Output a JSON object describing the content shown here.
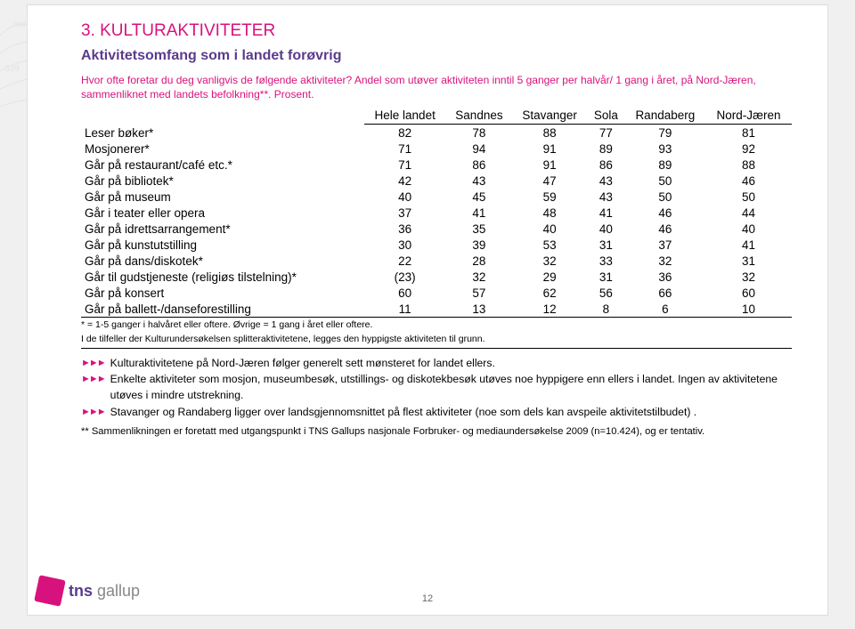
{
  "title": "3. KULTURAKTIVITETER",
  "subtitle": "Aktivitetsomfang som i landet forøvrig",
  "intro": "Hvor ofte foretar du deg vanligvis de følgende aktiviteter? Andel som utøver aktiviteten inntil 5 ganger per halvår/ 1 gang i året, på Nord-Jæren, sammenliknet med landets befolkning**. Prosent.",
  "columns": [
    "Hele landet",
    "Sandnes",
    "Stavanger",
    "Sola",
    "Randaberg",
    "Nord-Jæren"
  ],
  "rows": [
    {
      "label": "Leser bøker*",
      "v": [
        "82",
        "78",
        "88",
        "77",
        "79",
        "81"
      ]
    },
    {
      "label": "Mosjonerer*",
      "v": [
        "71",
        "94",
        "91",
        "89",
        "93",
        "92"
      ]
    },
    {
      "label": "Går på restaurant/café etc.*",
      "v": [
        "71",
        "86",
        "91",
        "86",
        "89",
        "88"
      ]
    },
    {
      "label": "Går på bibliotek*",
      "v": [
        "42",
        "43",
        "47",
        "43",
        "50",
        "46"
      ]
    },
    {
      "label": "Går på museum",
      "v": [
        "40",
        "45",
        "59",
        "43",
        "50",
        "50"
      ]
    },
    {
      "label": "Går i teater eller opera",
      "v": [
        "37",
        "41",
        "48",
        "41",
        "46",
        "44"
      ]
    },
    {
      "label": "Går på idrettsarrangement*",
      "v": [
        "36",
        "35",
        "40",
        "40",
        "46",
        "40"
      ]
    },
    {
      "label": "Går på kunstutstilling",
      "v": [
        "30",
        "39",
        "53",
        "31",
        "37",
        "41"
      ]
    },
    {
      "label": "Går på dans/diskotek*",
      "v": [
        "22",
        "28",
        "32",
        "33",
        "32",
        "31"
      ]
    },
    {
      "label": "Går til gudstjeneste (religiøs tilstelning)*",
      "v": [
        "(23)",
        "32",
        "29",
        "31",
        "36",
        "32"
      ]
    },
    {
      "label": "Går på konsert",
      "v": [
        "60",
        "57",
        "62",
        "56",
        "66",
        "60"
      ]
    },
    {
      "label": "Går på ballett-/danseforestilling",
      "v": [
        "11",
        "13",
        "12",
        "8",
        "6",
        "10"
      ]
    }
  ],
  "footnote1": "* = 1-5 ganger i halvåret eller oftere. Øvrige = 1 gang i året eller oftere.",
  "footnote2": "I de tilfeller der Kulturundersøkelsen splitteraktivitetene, legges den hyppigste aktiviteten til grunn.",
  "bullets": [
    "Kulturaktivitetene på Nord-Jæren følger generelt sett mønsteret for landet ellers.",
    "Enkelte aktiviteter som  mosjon, museumbesøk, utstillings- og diskotekbesøk utøves noe hyppigere enn ellers i landet. Ingen av aktivitetene utøves i mindre utstrekning.",
    "Stavanger og Randaberg ligger over landsgjennomsnittet på flest aktiviteter (noe som dels kan avspeile aktivitetstilbudet) ."
  ],
  "disclaimer": "** Sammenlikningen er foretatt med utgangspunkt i TNS Gallups nasjonale Forbruker- og mediaundersøkelse 2009 (n=10.424), og er tentativ.",
  "logo": {
    "brand1": "tns",
    "brand2": "gallup"
  },
  "pagenum": "12",
  "colors": {
    "accent": "#d8127d",
    "purple": "#5a3b8c"
  }
}
